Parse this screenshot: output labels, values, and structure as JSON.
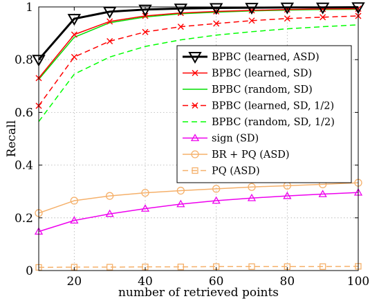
{
  "chart_data": {
    "type": "line",
    "xlabel": "number of retrieved points",
    "ylabel": "Recall",
    "xlim": [
      10,
      100
    ],
    "ylim": [
      0,
      1
    ],
    "xticks": [
      "20",
      "40",
      "60",
      "80",
      "100"
    ],
    "yticks": [
      "0",
      "0.2",
      "0.4",
      "0.6",
      "0.8",
      "1"
    ],
    "x": [
      10,
      20,
      30,
      40,
      50,
      60,
      70,
      80,
      90,
      100
    ],
    "grid": true,
    "legend_placement": "right",
    "series": [
      {
        "name": "BPBC (learned, ASD)",
        "color": "#000000",
        "dash": "solid",
        "marker": "triangle-down",
        "width": 3,
        "values": [
          0.8,
          0.955,
          0.982,
          0.99,
          0.994,
          0.996,
          0.997,
          0.998,
          0.998,
          0.999
        ]
      },
      {
        "name": "BPBC (learned, SD)",
        "color": "#ff0000",
        "dash": "solid",
        "marker": "x",
        "width": 1.5,
        "values": [
          0.73,
          0.895,
          0.945,
          0.966,
          0.977,
          0.983,
          0.987,
          0.99,
          0.992,
          0.993
        ]
      },
      {
        "name": "BPBC (random, SD)",
        "color": "#00dd00",
        "dash": "solid",
        "marker": "none",
        "width": 1.5,
        "values": [
          0.725,
          0.885,
          0.94,
          0.962,
          0.974,
          0.98,
          0.985,
          0.988,
          0.99,
          0.991
        ]
      },
      {
        "name": "BPBC (learned, SD, 1/2)",
        "color": "#ff0000",
        "dash": "dashed",
        "marker": "x",
        "width": 1.5,
        "values": [
          0.625,
          0.81,
          0.87,
          0.905,
          0.925,
          0.937,
          0.948,
          0.956,
          0.961,
          0.966
        ]
      },
      {
        "name": "BPBC (random, SD, 1/2)",
        "color": "#00ff00",
        "dash": "dashed",
        "marker": "none",
        "width": 1.5,
        "values": [
          0.565,
          0.745,
          0.81,
          0.85,
          0.875,
          0.893,
          0.906,
          0.917,
          0.925,
          0.932
        ]
      },
      {
        "name": "sign (SD)",
        "color": "#ee00ee",
        "dash": "solid",
        "marker": "triangle-up",
        "width": 1.5,
        "values": [
          0.148,
          0.19,
          0.215,
          0.235,
          0.252,
          0.265,
          0.275,
          0.283,
          0.29,
          0.296
        ]
      },
      {
        "name": "BR + PQ (ASD)",
        "color": "#f5b06a",
        "dash": "solid",
        "marker": "circle",
        "width": 1.5,
        "values": [
          0.218,
          0.265,
          0.283,
          0.295,
          0.303,
          0.31,
          0.317,
          0.322,
          0.327,
          0.333
        ]
      },
      {
        "name": "PQ (ASD)",
        "color": "#f5b06a",
        "dash": "dashed",
        "marker": "square",
        "width": 1.5,
        "values": [
          0.012,
          0.013,
          0.013,
          0.014,
          0.014,
          0.015,
          0.015,
          0.015,
          0.015,
          0.016
        ]
      }
    ]
  }
}
